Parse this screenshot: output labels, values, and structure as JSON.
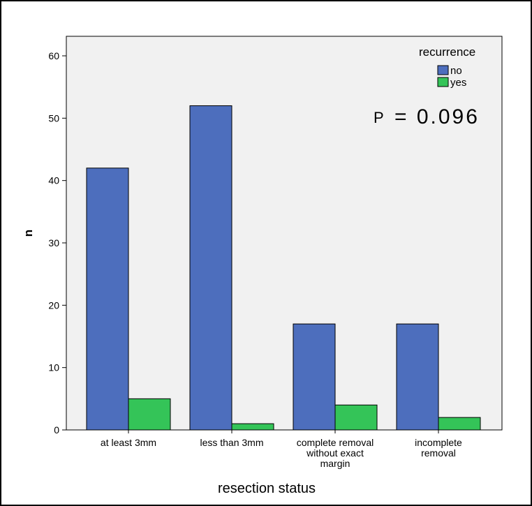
{
  "chart_data": {
    "type": "bar",
    "categories": [
      [
        "at least 3mm"
      ],
      [
        "less than 3mm"
      ],
      [
        "complete removal",
        "without exact",
        "margin"
      ],
      [
        "incomplete",
        "removal"
      ]
    ],
    "series": [
      {
        "name": "no",
        "values": [
          42,
          52,
          17,
          17
        ],
        "color": "#4d6ebd"
      },
      {
        "name": "yes",
        "values": [
          5,
          1,
          4,
          2
        ],
        "color": "#34c458"
      }
    ],
    "xlabel": "resection status",
    "ylabel": "n",
    "ylim": [
      0,
      60
    ],
    "yticks": [
      0,
      10,
      20,
      30,
      40,
      50,
      60
    ],
    "legend": {
      "title": "recurrence",
      "position": "top-right"
    },
    "annotation": {
      "p_label": "P",
      "p_value": "= 0.096"
    },
    "grid": false,
    "plot_background": "#f1f1f1"
  }
}
